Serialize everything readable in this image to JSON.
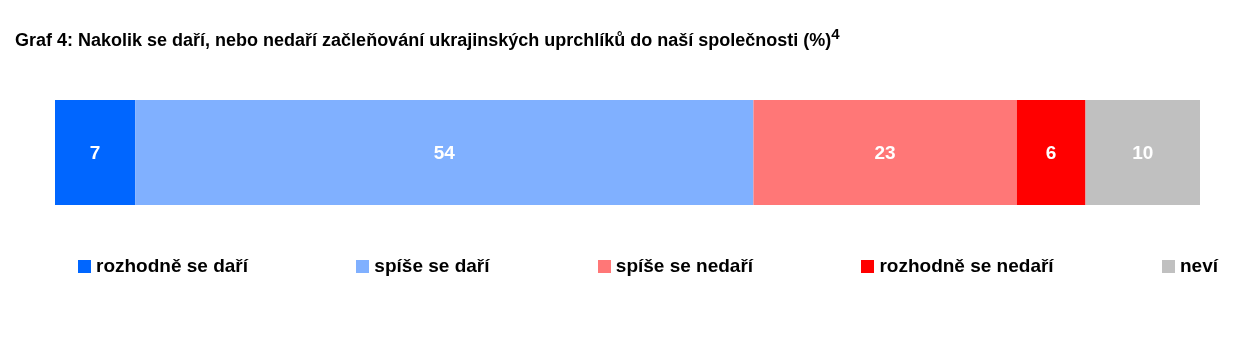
{
  "chart_data": {
    "type": "bar",
    "title": "Graf 4: Nakolik se daří, nebo nedaří začleňování ukrajinských uprchlíků do naší společnosti (%)$^{4}$",
    "categories": [
      null
    ],
    "orientation": "horizontal",
    "stacked": true,
    "data_labels": true,
    "legend": "bottom",
    "series": [
      {
        "name": "rozhodně se daří",
        "color": "#0066ff",
        "values": [
          7
        ]
      },
      {
        "name": "spíše se daří",
        "color": "#80b0ff",
        "values": [
          54
        ]
      },
      {
        "name": "spíše se nedaří",
        "color": "#ff7777",
        "values": [
          23
        ]
      },
      {
        "name": "rozhodně se nedaří",
        "color": "#ff0000",
        "values": [
          6
        ]
      },
      {
        "name": "neví",
        "color": "#c0c0c0",
        "values": [
          10
        ]
      }
    ]
  }
}
